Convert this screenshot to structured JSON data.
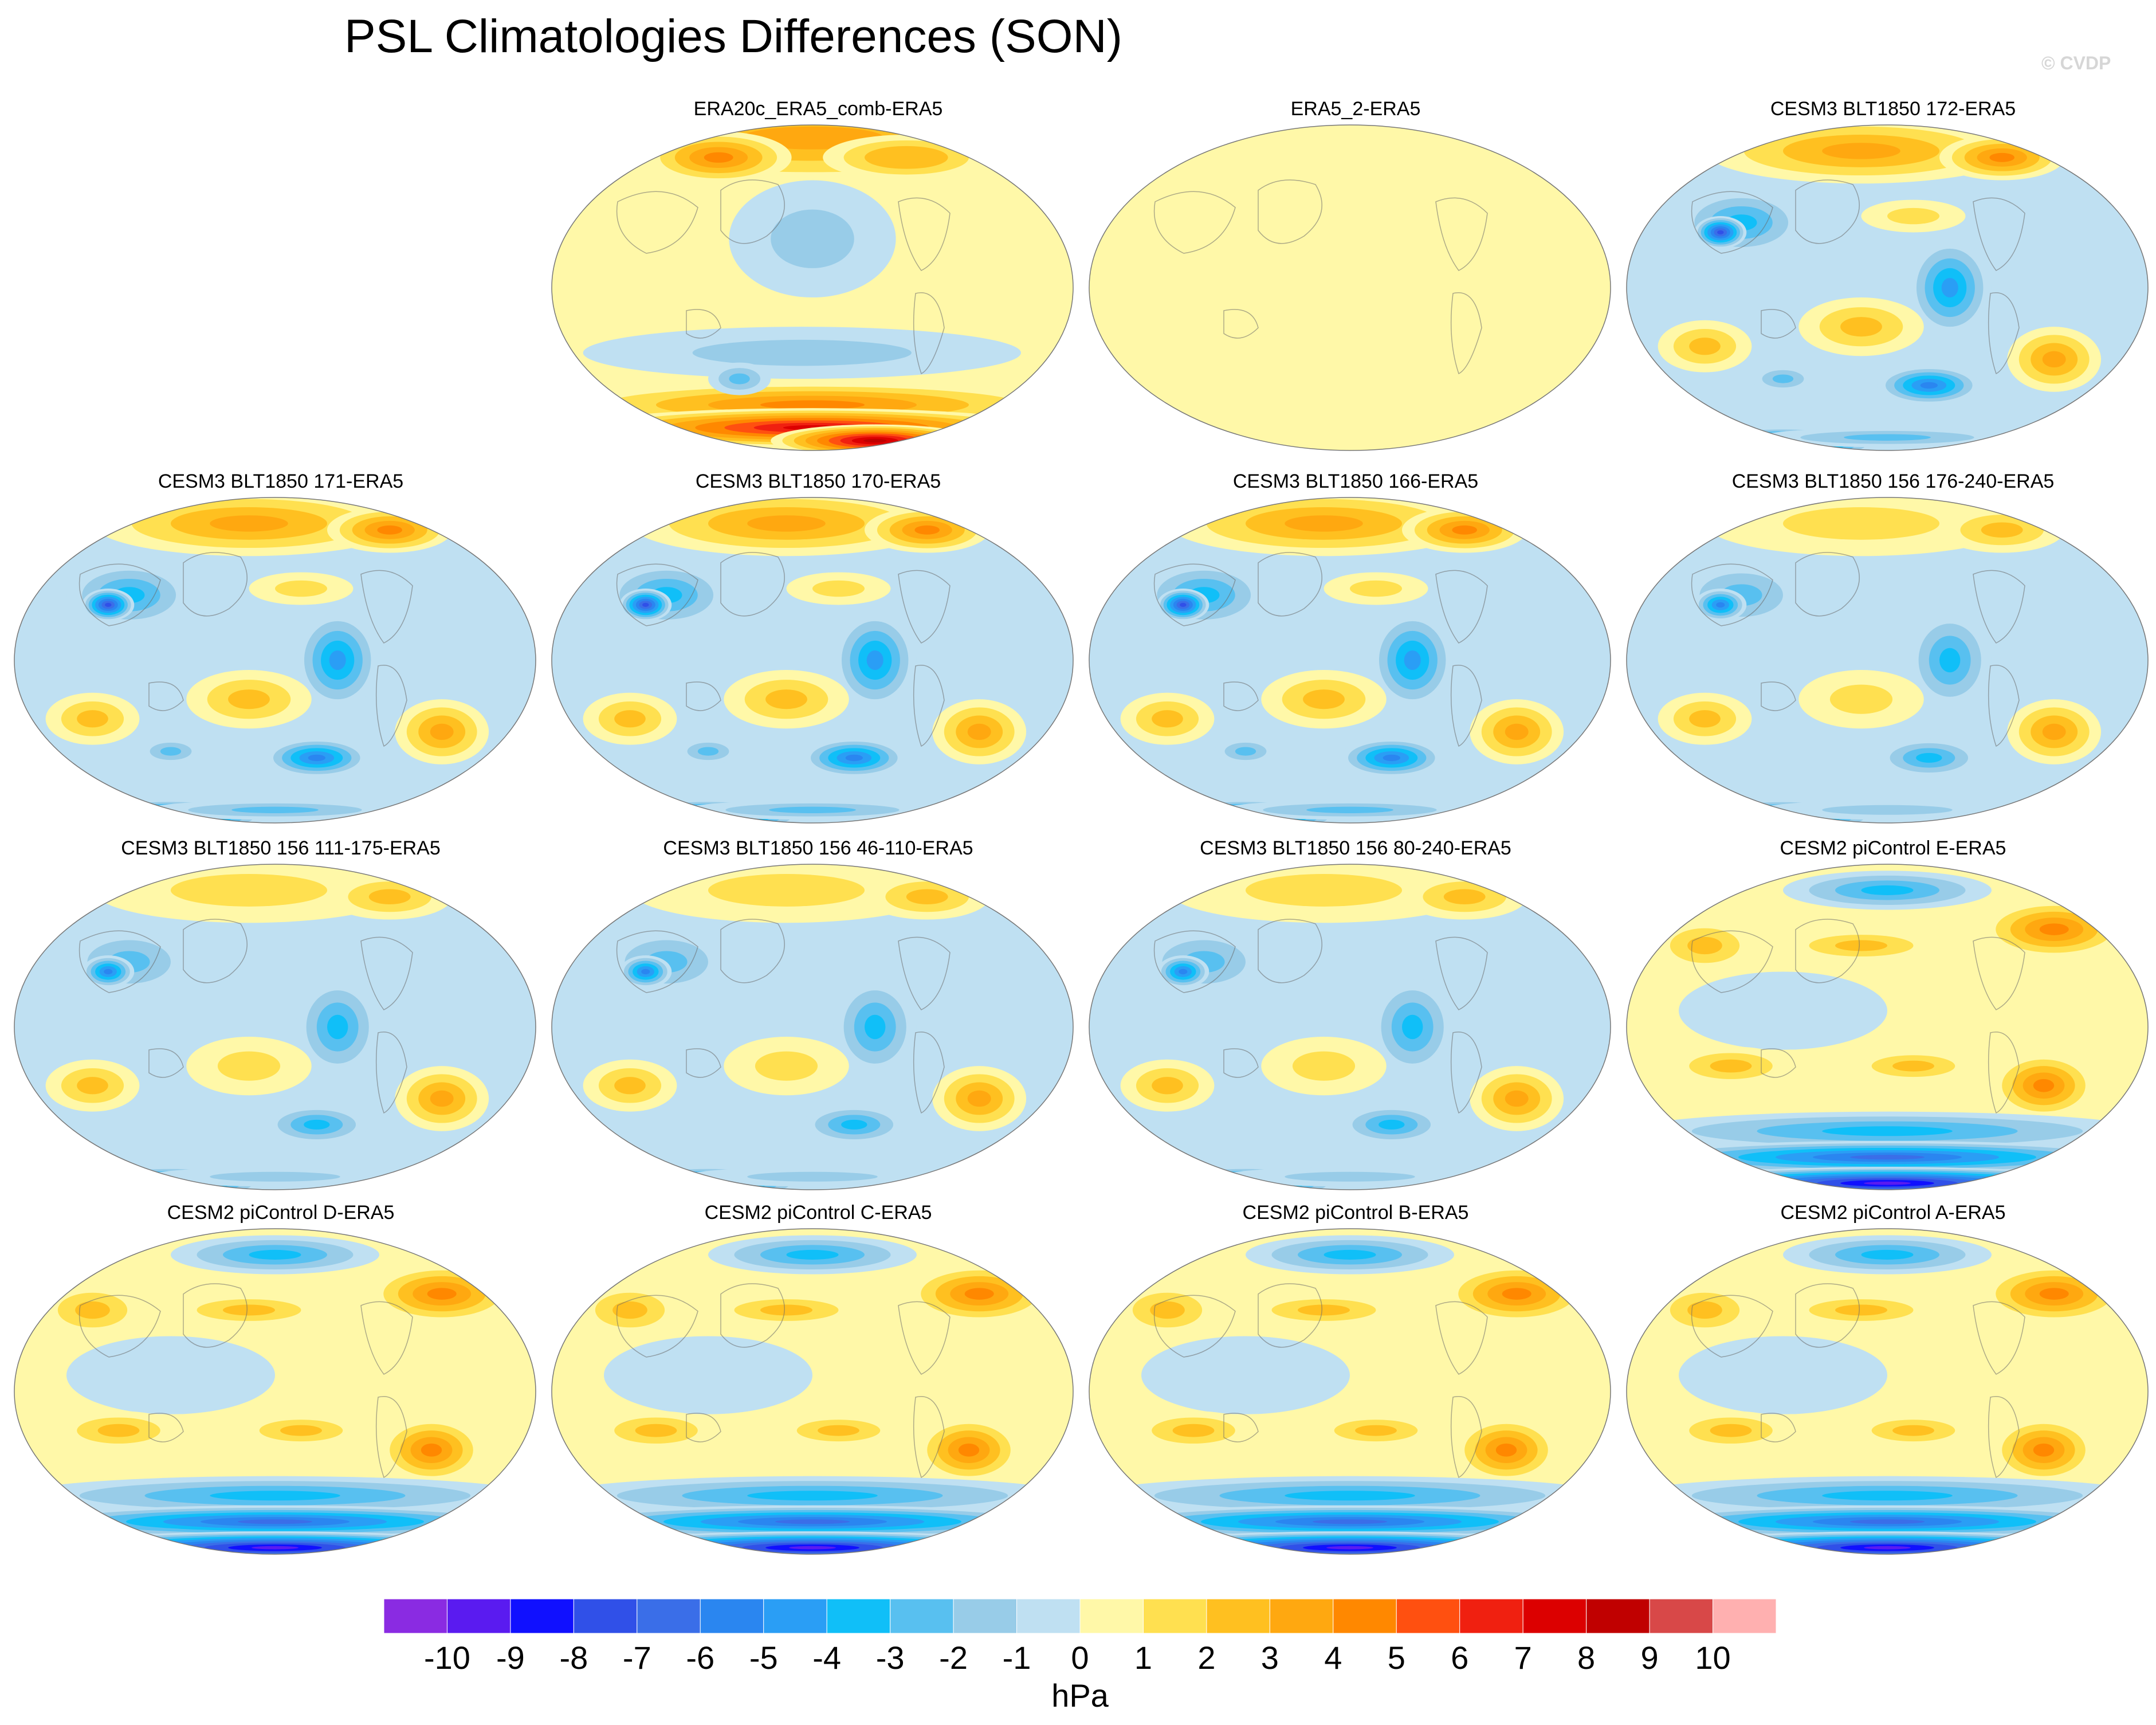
{
  "title": "PSL Climatologies Differences (SON)",
  "credit": "© CVDP",
  "chart_data": {
    "type": "heatmap",
    "projection": "global ellipse",
    "panels": [
      {
        "title": "ERA20c_ERA5_comb-ERA5",
        "pattern": "era20c"
      },
      {
        "title": "ERA5_2-ERA5",
        "pattern": "era5_2"
      },
      {
        "title": "CESM3 BLT1850 172-ERA5",
        "pattern": "cesm3"
      },
      {
        "title": "CESM3 BLT1850 171-ERA5",
        "pattern": "cesm3"
      },
      {
        "title": "CESM3 BLT1850 170-ERA5",
        "pattern": "cesm3"
      },
      {
        "title": "CESM3 BLT1850 166-ERA5",
        "pattern": "cesm3"
      },
      {
        "title": "CESM3 BLT1850 156 176-240-ERA5",
        "pattern": "cesm3_mild"
      },
      {
        "title": "CESM3 BLT1850 156 111-175-ERA5",
        "pattern": "cesm3_mild"
      },
      {
        "title": "CESM3 BLT1850 156 46-110-ERA5",
        "pattern": "cesm3_mild"
      },
      {
        "title": "CESM3 BLT1850 156 80-240-ERA5",
        "pattern": "cesm3_mild"
      },
      {
        "title": "CESM2 piControl E-ERA5",
        "pattern": "cesm2"
      },
      {
        "title": "CESM2 piControl D-ERA5",
        "pattern": "cesm2"
      },
      {
        "title": "CESM2 piControl C-ERA5",
        "pattern": "cesm2"
      },
      {
        "title": "CESM2 piControl B-ERA5",
        "pattern": "cesm2"
      },
      {
        "title": "CESM2 piControl A-ERA5",
        "pattern": "cesm2"
      }
    ],
    "colorbar": {
      "unit": "hPa",
      "tick_labels": [
        "-10",
        "-9",
        "-8",
        "-7",
        "-6",
        "-5",
        "-4",
        "-3",
        "-2",
        "-1",
        "0",
        "1",
        "2",
        "3",
        "4",
        "5",
        "6",
        "7",
        "8",
        "9",
        "10"
      ],
      "colors": [
        "#8a2be2",
        "#5a1bf0",
        "#1010ff",
        "#3050e8",
        "#3a6ee8",
        "#2a86f0",
        "#2a9ef5",
        "#10bff8",
        "#58c0f0",
        "#98cce8",
        "#bfe0f2",
        "#fff8a8",
        "#ffe050",
        "#ffc020",
        "#ffa810",
        "#ff8800",
        "#ff5010",
        "#f02010",
        "#dc0000",
        "#c00000",
        "#d84848",
        "#ffb0b0"
      ]
    }
  }
}
